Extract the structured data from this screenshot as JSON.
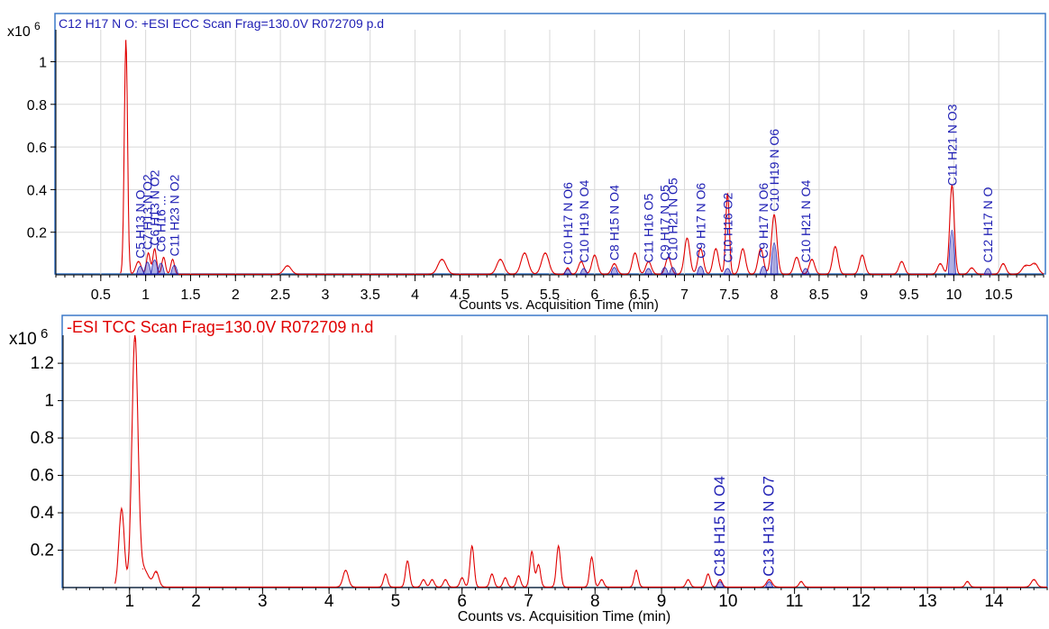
{
  "chart_data": [
    {
      "type": "line",
      "title": "C12 H17 N O: +ESI ECC Scan Frag=130.0V R072709 p.d",
      "scale_label": "x10",
      "scale_exp": "6",
      "xlabel": "Counts vs. Acquisition Time (min)",
      "ylabel": "",
      "xlim": [
        0.0,
        11.0
      ],
      "ylim": [
        0,
        1.15
      ],
      "grid": true,
      "colors": {
        "trace": "#e00000",
        "annotation": "#1e1eb4",
        "title": "#1e1eb4",
        "frame": "#3c78c8"
      },
      "x_ticks": [
        "0.5",
        "1",
        "1.5",
        "2",
        "2.5",
        "3",
        "3.5",
        "4",
        "4.5",
        "5",
        "5.5",
        "6",
        "6.5",
        "7",
        "7.5",
        "8",
        "8.5",
        "9",
        "9.5",
        "10",
        "10.5"
      ],
      "x_tick_values": [
        0.5,
        1,
        1.5,
        2,
        2.5,
        3,
        3.5,
        4,
        4.5,
        5,
        5.5,
        6,
        6.5,
        7,
        7.5,
        8,
        8.5,
        9,
        9.5,
        10,
        10.5
      ],
      "y_ticks": [
        "1",
        "0.8",
        "0.6",
        "0.4",
        "0.2"
      ],
      "y_tick_values": [
        1,
        0.8,
        0.6,
        0.4,
        0.2
      ],
      "baseline": 0.003,
      "trace_start": 0.72,
      "trace_end": 11.0,
      "peaks": [
        [
          0.78,
          1.1,
          0.018
        ],
        [
          0.92,
          0.06,
          0.03
        ],
        [
          1.03,
          0.1,
          0.02
        ],
        [
          1.1,
          0.12,
          0.02
        ],
        [
          1.2,
          0.08,
          0.02
        ],
        [
          1.3,
          0.07,
          0.02
        ],
        [
          2.58,
          0.04,
          0.04
        ],
        [
          4.3,
          0.07,
          0.045
        ],
        [
          4.95,
          0.07,
          0.04
        ],
        [
          5.22,
          0.1,
          0.04
        ],
        [
          5.45,
          0.1,
          0.04
        ],
        [
          5.7,
          0.03,
          0.02
        ],
        [
          5.85,
          0.06,
          0.03
        ],
        [
          6.0,
          0.09,
          0.03
        ],
        [
          6.22,
          0.05,
          0.03
        ],
        [
          6.45,
          0.1,
          0.03
        ],
        [
          6.6,
          0.06,
          0.03
        ],
        [
          6.82,
          0.08,
          0.03
        ],
        [
          7.03,
          0.17,
          0.03
        ],
        [
          7.18,
          0.12,
          0.03
        ],
        [
          7.35,
          0.12,
          0.03
        ],
        [
          7.48,
          0.38,
          0.02
        ],
        [
          7.65,
          0.12,
          0.03
        ],
        [
          7.85,
          0.12,
          0.03
        ],
        [
          8.0,
          0.28,
          0.03
        ],
        [
          8.25,
          0.08,
          0.03
        ],
        [
          8.42,
          0.07,
          0.03
        ],
        [
          8.68,
          0.13,
          0.03
        ],
        [
          8.98,
          0.09,
          0.03
        ],
        [
          9.42,
          0.06,
          0.03
        ],
        [
          9.85,
          0.05,
          0.03
        ],
        [
          9.98,
          0.42,
          0.025
        ],
        [
          10.2,
          0.03,
          0.03
        ],
        [
          10.55,
          0.05,
          0.03
        ],
        [
          10.8,
          0.04,
          0.04
        ],
        [
          10.9,
          0.05,
          0.04
        ]
      ],
      "annotations": [
        {
          "label": "C5 H13 N O",
          "x": 0.94,
          "y": 0.06
        },
        {
          "label": "C7 H13 N O2",
          "x": 1.02,
          "y": 0.1
        },
        {
          "label": "C6 H13 N O2",
          "x": 1.1,
          "y": 0.12
        },
        {
          "label": "C6 H16 ...",
          "x": 1.17,
          "y": 0.09
        },
        {
          "label": "C11 H23 N O2",
          "x": 1.32,
          "y": 0.07
        },
        {
          "label": "C10 H17 N O6",
          "x": 5.7,
          "y": 0.03
        },
        {
          "label": "C10 H19 N O4",
          "x": 5.88,
          "y": 0.04
        },
        {
          "label": "C8 H15 N O4",
          "x": 6.22,
          "y": 0.05
        },
        {
          "label": "C11 H16 O5",
          "x": 6.6,
          "y": 0.04
        },
        {
          "label": "C9 H17 N O5",
          "x": 6.78,
          "y": 0.05
        },
        {
          "label": "C10 H21 N O5",
          "x": 6.87,
          "y": 0.05
        },
        {
          "label": "C9 H17 N O6",
          "x": 7.18,
          "y": 0.06
        },
        {
          "label": "C10 H16 O2",
          "x": 7.48,
          "y": 0.04
        },
        {
          "label": "C9 H17 N O6",
          "x": 7.88,
          "y": 0.06
        },
        {
          "label": "C10 H19 N O6",
          "x": 8.0,
          "y": 0.28
        },
        {
          "label": "C10 H21 N O4",
          "x": 8.35,
          "y": 0.04
        },
        {
          "label": "C11 H21 N O3",
          "x": 9.98,
          "y": 0.4
        },
        {
          "label": "C12 H17 N O",
          "x": 10.38,
          "y": 0.04
        }
      ]
    },
    {
      "type": "line",
      "title": "-ESI TCC Scan Frag=130.0V R072709 n.d",
      "scale_label": "x10",
      "scale_exp": "6",
      "xlabel": "Counts vs. Acquisition Time (min)",
      "ylabel": "",
      "xlim": [
        0.0,
        14.8
      ],
      "ylim": [
        0,
        1.35
      ],
      "grid": true,
      "colors": {
        "trace": "#e00000",
        "annotation": "#1e1eb4",
        "title": "#e00000",
        "frame": "#3c78c8"
      },
      "x_ticks": [
        "1",
        "2",
        "3",
        "4",
        "5",
        "6",
        "7",
        "8",
        "9",
        "10",
        "11",
        "12",
        "13",
        "14"
      ],
      "x_tick_values": [
        1,
        2,
        3,
        4,
        5,
        6,
        7,
        8,
        9,
        10,
        11,
        12,
        13,
        14
      ],
      "y_ticks": [
        "1.2",
        "1",
        "0.8",
        "0.6",
        "0.4",
        "0.2"
      ],
      "y_tick_values": [
        1.2,
        1,
        0.8,
        0.6,
        0.4,
        0.2
      ],
      "baseline": 0.003,
      "trace_start": 0.78,
      "trace_end": 14.8,
      "peaks": [
        [
          0.88,
          0.42,
          0.04
        ],
        [
          1.08,
          1.32,
          0.045
        ],
        [
          1.2,
          0.1,
          0.08
        ],
        [
          1.4,
          0.08,
          0.04
        ],
        [
          4.25,
          0.09,
          0.04
        ],
        [
          4.85,
          0.07,
          0.03
        ],
        [
          5.18,
          0.14,
          0.03
        ],
        [
          5.42,
          0.04,
          0.03
        ],
        [
          5.55,
          0.04,
          0.03
        ],
        [
          5.75,
          0.04,
          0.03
        ],
        [
          6.0,
          0.05,
          0.03
        ],
        [
          6.15,
          0.22,
          0.03
        ],
        [
          6.45,
          0.07,
          0.03
        ],
        [
          6.65,
          0.05,
          0.03
        ],
        [
          6.85,
          0.06,
          0.03
        ],
        [
          7.05,
          0.19,
          0.03
        ],
        [
          7.15,
          0.12,
          0.03
        ],
        [
          7.45,
          0.22,
          0.03
        ],
        [
          7.95,
          0.16,
          0.03
        ],
        [
          8.1,
          0.04,
          0.03
        ],
        [
          8.62,
          0.09,
          0.03
        ],
        [
          9.4,
          0.04,
          0.03
        ],
        [
          9.7,
          0.07,
          0.03
        ],
        [
          9.88,
          0.04,
          0.03
        ],
        [
          10.62,
          0.04,
          0.04
        ],
        [
          11.1,
          0.03,
          0.03
        ],
        [
          13.6,
          0.03,
          0.03
        ],
        [
          14.6,
          0.04,
          0.04
        ]
      ],
      "annotations": [
        {
          "label": "C18 H15 N O4",
          "x": 9.88,
          "y": 0.04
        },
        {
          "label": "C13 H13 N O7",
          "x": 10.62,
          "y": 0.04
        }
      ]
    }
  ]
}
